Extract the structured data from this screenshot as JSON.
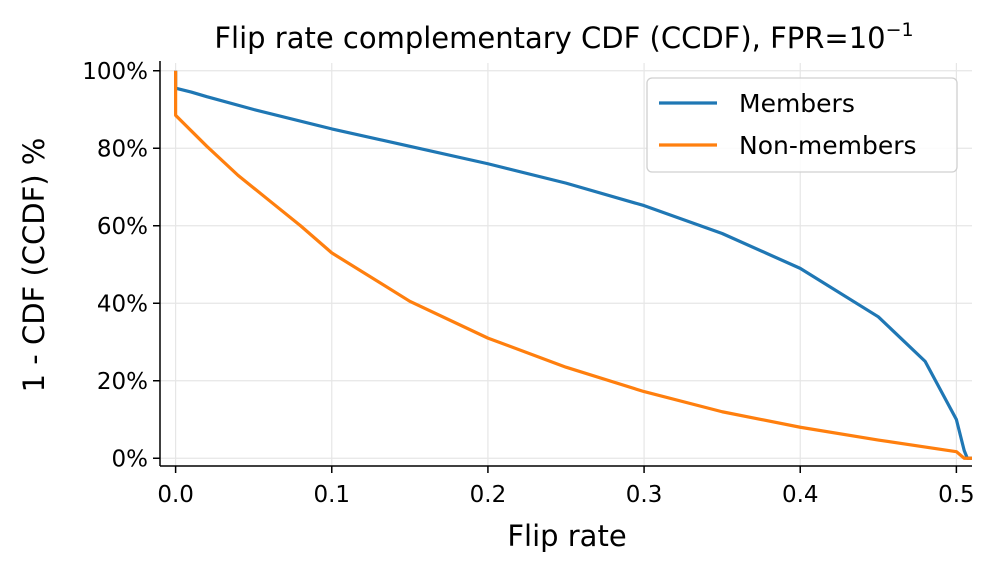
{
  "chart_data": {
    "type": "line",
    "title": "Flip rate complementary CDF (CCDF), FPR=10",
    "title_exponent": "−1",
    "xlabel": "Flip rate",
    "ylabel": "1 - CDF (CCDF) %",
    "xlim": [
      -0.01,
      0.51
    ],
    "ylim": [
      -2,
      102
    ],
    "x_ticks": [
      0.0,
      0.1,
      0.2,
      0.3,
      0.4,
      0.5
    ],
    "x_tick_labels": [
      "0.0",
      "0.1",
      "0.2",
      "0.3",
      "0.4",
      "0.5"
    ],
    "y_ticks": [
      0,
      20,
      40,
      60,
      80,
      100
    ],
    "y_tick_labels": [
      "0%",
      "20%",
      "40%",
      "60%",
      "80%",
      "100%"
    ],
    "grid": true,
    "legend_position": "top-right",
    "series": [
      {
        "name": "Members",
        "color": "#1f77b4",
        "x": [
          0.0,
          0.0,
          0.01,
          0.02,
          0.05,
          0.1,
          0.15,
          0.2,
          0.25,
          0.3,
          0.35,
          0.4,
          0.45,
          0.48,
          0.5,
          0.505,
          0.507,
          0.51
        ],
        "y": [
          100,
          95.5,
          94.5,
          93.3,
          90.0,
          85.0,
          80.5,
          76.0,
          71.0,
          65.2,
          58.0,
          49.0,
          36.5,
          25.0,
          10.0,
          2.0,
          0.0,
          0.0
        ]
      },
      {
        "name": "Non-members",
        "color": "#ff7f0e",
        "x": [
          0.0,
          0.0,
          0.01,
          0.02,
          0.04,
          0.06,
          0.08,
          0.1,
          0.15,
          0.2,
          0.25,
          0.3,
          0.35,
          0.4,
          0.45,
          0.5,
          0.505,
          0.51
        ],
        "y": [
          100,
          88.5,
          84.5,
          80.5,
          73.0,
          66.5,
          60.0,
          53.0,
          40.5,
          31.0,
          23.5,
          17.2,
          12.0,
          8.0,
          4.7,
          1.7,
          0.0,
          0.0
        ]
      }
    ]
  }
}
